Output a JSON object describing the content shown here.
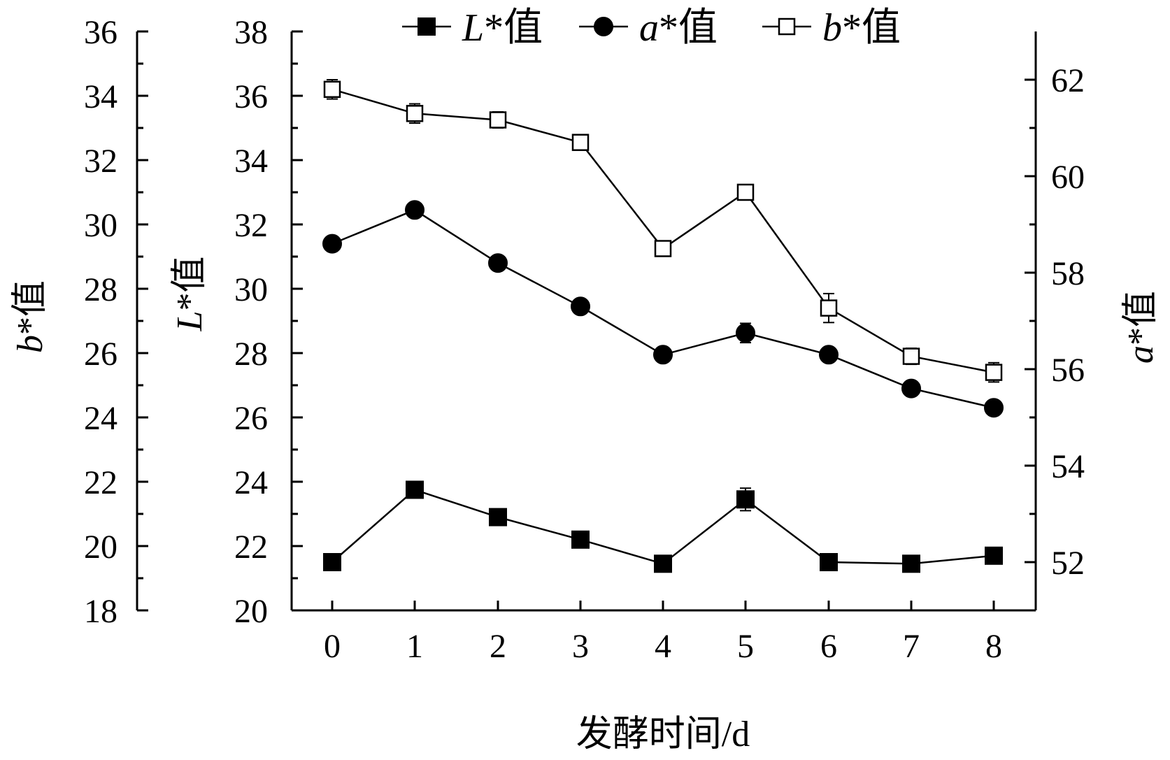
{
  "chart_data": {
    "type": "line",
    "xlabel": "发酵时间/d",
    "x": [
      0,
      1,
      2,
      3,
      4,
      5,
      6,
      7,
      8
    ],
    "axes": {
      "b": {
        "title_var": "b",
        "title_suffix": "*值",
        "ylim": [
          18,
          36
        ],
        "ticks": [
          18,
          20,
          22,
          24,
          26,
          28,
          30,
          32,
          34,
          36
        ]
      },
      "L": {
        "title_var": "L",
        "title_suffix": "*值",
        "ylim": [
          20,
          38
        ],
        "ticks": [
          20,
          22,
          24,
          26,
          28,
          30,
          32,
          34,
          36,
          38
        ]
      },
      "a": {
        "title_var": "a",
        "title_suffix": "*值",
        "ylim": [
          51,
          63
        ],
        "ticks": [
          52,
          54,
          56,
          58,
          60,
          62
        ]
      }
    },
    "legend": {
      "position": "top",
      "suffix": "*值"
    },
    "series": [
      {
        "name": "L",
        "axis": "L",
        "marker": "filled-square",
        "values": [
          21.5,
          23.75,
          22.9,
          22.2,
          21.45,
          23.45,
          21.5,
          21.45,
          21.7
        ],
        "errors": [
          0.15,
          0.2,
          0.15,
          0.15,
          0.25,
          0.35,
          0.15,
          0.2,
          0.25
        ]
      },
      {
        "name": "a",
        "axis": "a",
        "marker": "filled-circle",
        "values": [
          58.6,
          59.3,
          58.2,
          57.3,
          56.3,
          56.75,
          56.3,
          55.6,
          55.2
        ],
        "errors": [
          0.1,
          0.1,
          0.15,
          0.15,
          0.1,
          0.2,
          0.15,
          0.1,
          0.15
        ]
      },
      {
        "name": "b",
        "axis": "b",
        "marker": "open-square",
        "values": [
          34.2,
          33.45,
          33.25,
          32.55,
          29.25,
          31.0,
          27.4,
          25.9,
          25.4
        ],
        "errors": [
          0.3,
          0.3,
          0.25,
          0.2,
          0.2,
          0.2,
          0.45,
          0.25,
          0.3
        ]
      }
    ]
  }
}
